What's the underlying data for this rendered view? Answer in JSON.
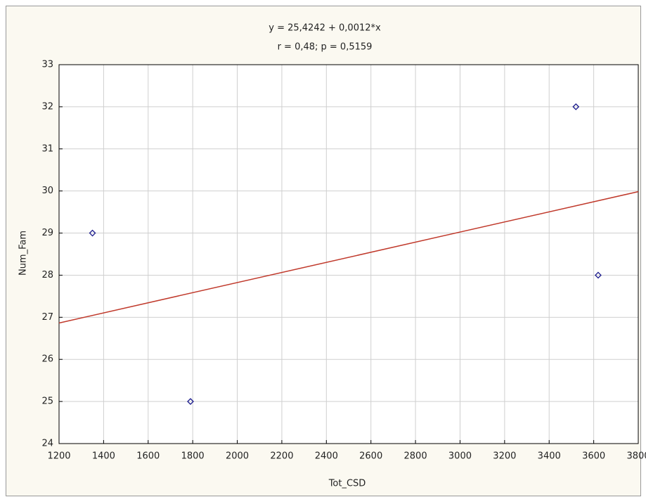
{
  "chart_data": {
    "type": "scatter",
    "title": "y = 25,4242 + 0,0012*x",
    "subtitle": "r = 0,48; p = 0,5159",
    "x_label": "Tot_CSD",
    "y_label": "Num_Fam",
    "x": [
      1350,
      1790,
      3520,
      3620
    ],
    "values": [
      29,
      25,
      32,
      28
    ],
    "color": "#1a1a8c",
    "fit": {
      "intercept": 25.4242,
      "slope": 0.0012,
      "color": "#c0392b"
    },
    "xlim": [
      1200,
      3800
    ],
    "ylim": [
      24,
      33
    ],
    "xticks": [
      1200,
      1400,
      1600,
      1800,
      2000,
      2200,
      2400,
      2600,
      2800,
      3000,
      3200,
      3400,
      3600,
      3800
    ],
    "yticks": [
      24,
      25,
      26,
      27,
      28,
      29,
      30,
      31,
      32,
      33
    ],
    "grid": true
  }
}
